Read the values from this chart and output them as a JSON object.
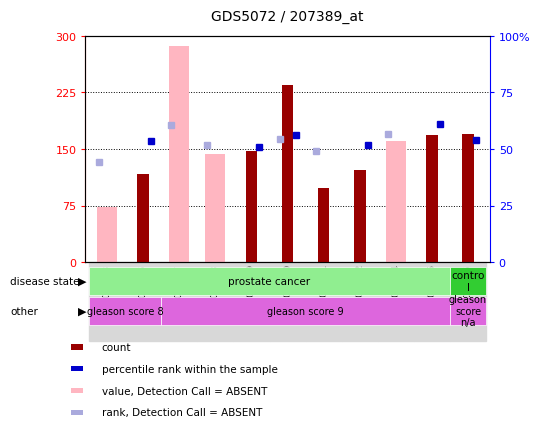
{
  "title": "GDS5072 / 207389_at",
  "samples": [
    "GSM1095883",
    "GSM1095886",
    "GSM1095877",
    "GSM1095878",
    "GSM1095879",
    "GSM1095880",
    "GSM1095881",
    "GSM1095882",
    "GSM1095884",
    "GSM1095885",
    "GSM1095876"
  ],
  "count_values": [
    null,
    117,
    null,
    null,
    148,
    235,
    98,
    122,
    null,
    168,
    170
  ],
  "count_absent": [
    73,
    null,
    287,
    143,
    null,
    null,
    null,
    null,
    160,
    null,
    null
  ],
  "percentile_dark": [
    null,
    160,
    null,
    null,
    153,
    168,
    null,
    155,
    null,
    183,
    162
  ],
  "percentile_absent": [
    133,
    null,
    182,
    155,
    null,
    163,
    147,
    null,
    170,
    null,
    null
  ],
  "ylim": [
    0,
    300
  ],
  "y2lim": [
    0,
    100
  ],
  "yticks": [
    0,
    75,
    150,
    225,
    300
  ],
  "ytick_labels": [
    "0",
    "75",
    "150",
    "225",
    "300"
  ],
  "y2ticks": [
    0,
    25,
    50,
    75,
    100
  ],
  "y2tick_labels": [
    "0",
    "25",
    "50",
    "75",
    "100%"
  ],
  "dark_red": "#990000",
  "light_pink": "#FFB6C1",
  "dark_blue": "#0000CC",
  "light_blue": "#AAAADD",
  "green_light": "#90EE90",
  "green_dark": "#32CD32",
  "magenta": "#DD66DD",
  "bg_gray": "#D8D8D8",
  "disease_state_groups": [
    {
      "label": "prostate cancer",
      "start": 0,
      "end": 9,
      "color": "#90EE90"
    },
    {
      "label": "contro\nl",
      "start": 10,
      "end": 10,
      "color": "#32CD32"
    }
  ],
  "other_groups": [
    {
      "label": "gleason score 8",
      "start": 0,
      "end": 1,
      "color": "#DD66DD"
    },
    {
      "label": "gleason score 9",
      "start": 2,
      "end": 9,
      "color": "#DD66DD"
    },
    {
      "label": "gleason\nscore\nn/a",
      "start": 10,
      "end": 10,
      "color": "#DD66DD"
    }
  ],
  "legend_items": [
    {
      "label": "count",
      "color": "#990000"
    },
    {
      "label": "percentile rank within the sample",
      "color": "#0000CC"
    },
    {
      "label": "value, Detection Call = ABSENT",
      "color": "#FFB6C1"
    },
    {
      "label": "rank, Detection Call = ABSENT",
      "color": "#AAAADD"
    }
  ]
}
